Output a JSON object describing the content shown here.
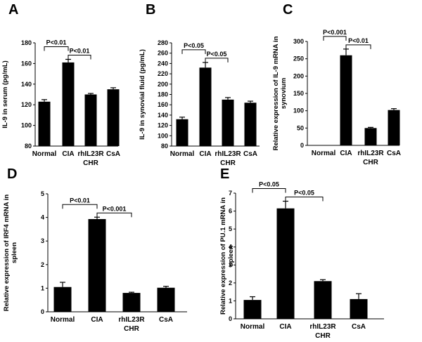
{
  "chart_data": [
    {
      "panel": "A",
      "type": "bar",
      "categories": [
        "Normal",
        "CIA",
        "rhIL23R",
        "CsA"
      ],
      "subcategory_label": "CHR",
      "values": [
        123,
        161,
        130,
        135
      ],
      "errors": [
        2,
        3,
        1,
        1.5
      ],
      "ylabel": "IL-9 in serum (pg/mL)",
      "ylim": [
        80,
        180
      ],
      "yticks": [
        80,
        100,
        120,
        140,
        160,
        180
      ],
      "comparisons": [
        {
          "from": 0,
          "to": 1,
          "label": "P<0.01",
          "level": 0
        },
        {
          "from": 1,
          "to": 2,
          "label": "P<0.01",
          "level": 1
        }
      ]
    },
    {
      "panel": "B",
      "type": "bar",
      "categories": [
        "Normal",
        "CIA",
        "rhIL23R",
        "CsA"
      ],
      "subcategory_label": "CHR",
      "values": [
        132,
        232,
        170,
        164
      ],
      "errors": [
        4,
        10,
        4,
        3
      ],
      "ylabel": "IL-9 in synovial fluid (pg/mL)",
      "ylim": [
        80,
        280
      ],
      "yticks": [
        80,
        100,
        120,
        140,
        160,
        180,
        200,
        220,
        240,
        260,
        280
      ],
      "comparisons": [
        {
          "from": 0,
          "to": 1,
          "label": "P<0.05",
          "level": 0
        },
        {
          "from": 1,
          "to": 2,
          "label": "P<0.05",
          "level": 1
        }
      ]
    },
    {
      "panel": "C",
      "type": "bar",
      "categories": [
        "Normal",
        "CIA",
        "rhIL23R",
        "CsA"
      ],
      "subcategory_label": "CHR",
      "values": [
        1,
        260,
        50,
        102
      ],
      "errors": [
        0,
        18,
        2,
        4
      ],
      "ylabel": "Relative expression of IL-9 mRNA in synovium",
      "ylim": [
        0,
        300
      ],
      "yticks": [
        0,
        50,
        100,
        150,
        200,
        250,
        300
      ],
      "comparisons": [
        {
          "from": 0,
          "to": 1,
          "label": "P<0.001",
          "level": 0
        },
        {
          "from": 1,
          "to": 2,
          "label": "P<0.01",
          "level": 1
        }
      ]
    },
    {
      "panel": "D",
      "type": "bar",
      "categories": [
        "Normal",
        "CIA",
        "rhIL23R",
        "CsA"
      ],
      "subcategory_label": "CHR",
      "values": [
        1.05,
        3.93,
        0.8,
        1.02
      ],
      "errors": [
        0.2,
        0.08,
        0.03,
        0.06
      ],
      "ylabel": "Relative expression of IRF4 mRNA in spleen",
      "ylim": [
        0,
        5
      ],
      "yticks": [
        0,
        1,
        2,
        3,
        4,
        5
      ],
      "comparisons": [
        {
          "from": 0,
          "to": 1,
          "label": "P<0.01",
          "level": 0
        },
        {
          "from": 1,
          "to": 2,
          "label": "P<0.001",
          "level": 1
        }
      ]
    },
    {
      "panel": "E",
      "type": "bar",
      "categories": [
        "Normal",
        "CIA",
        "rhIL23R",
        "CsA"
      ],
      "subcategory_label": "CHR",
      "values": [
        1.05,
        6.15,
        2.1,
        1.1
      ],
      "errors": [
        0.18,
        0.4,
        0.08,
        0.3
      ],
      "ylabel": "Relative expression of PU.1 mRNA in spleen",
      "ylim": [
        0,
        7
      ],
      "yticks": [
        0,
        1,
        2,
        3,
        4,
        5,
        6,
        7
      ],
      "comparisons": [
        {
          "from": 0,
          "to": 1,
          "label": "P<0.05",
          "level": 0
        },
        {
          "from": 1,
          "to": 2,
          "label": "P<0.05",
          "level": 1
        }
      ]
    }
  ]
}
